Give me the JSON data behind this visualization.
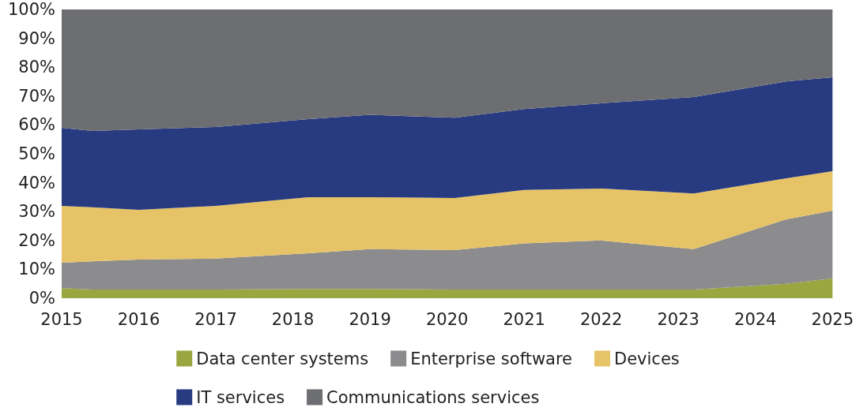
{
  "chart_data": {
    "type": "area",
    "stacked": true,
    "x": [
      2015,
      2015.4,
      2016,
      2017,
      2018.2,
      2019,
      2020.1,
      2021,
      2022,
      2023.2,
      2024.4,
      2025
    ],
    "series": [
      {
        "name": "Data center systems",
        "color": "#9aa63f",
        "values": [
          3.5,
          3,
          3,
          3,
          3.2,
          3.2,
          3,
          3,
          3,
          3,
          5,
          6.8
        ]
      },
      {
        "name": "Enterprise software",
        "color": "#8c8c8e",
        "values": [
          8.8,
          9.8,
          10.4,
          10.7,
          12.4,
          13.8,
          13.7,
          16,
          17,
          14,
          22.3,
          23.5
        ]
      },
      {
        "name": "Devices",
        "color": "#e6c366",
        "values": [
          19.7,
          18.7,
          17.2,
          18.3,
          19.4,
          18,
          18,
          18.5,
          18,
          19.3,
          14.2,
          13.7
        ]
      },
      {
        "name": "IT services",
        "color": "#283a80",
        "values": [
          27,
          26.4,
          27.9,
          27.3,
          27,
          28.5,
          27.8,
          28,
          29.5,
          33.4,
          33.6,
          32.5
        ]
      },
      {
        "name": "Communications services",
        "color": "#6d6e72",
        "values": [
          41,
          42.1,
          41.5,
          40.7,
          38,
          36.5,
          37.5,
          34.5,
          32.5,
          30.3,
          24.9,
          23.5
        ]
      }
    ],
    "xlim": [
      2015,
      2025
    ],
    "xticks": [
      2015,
      2016,
      2017,
      2018,
      2019,
      2020,
      2021,
      2022,
      2023,
      2024,
      2025
    ],
    "ylim": [
      0,
      100
    ],
    "yticks": [
      {
        "value": 0,
        "label": "0%"
      },
      {
        "value": 10,
        "label": "10%"
      },
      {
        "value": 20,
        "label": "20%"
      },
      {
        "value": 30,
        "label": "30%"
      },
      {
        "value": 40,
        "label": "40%"
      },
      {
        "value": 50,
        "label": "50%"
      },
      {
        "value": 60,
        "label": "60%"
      },
      {
        "value": 70,
        "label": "70%"
      },
      {
        "value": 80,
        "label": "80%"
      },
      {
        "value": 90,
        "label": "90%"
      },
      {
        "value": 100,
        "label": "100%"
      }
    ],
    "grid": false,
    "legend": "bottom",
    "marker": "none"
  }
}
